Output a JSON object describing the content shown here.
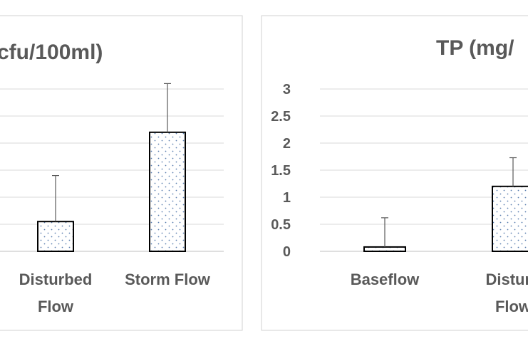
{
  "chart_data": [
    {
      "type": "bar",
      "title": "cfu/100ml)",
      "categories": [
        "Disturbed Flow",
        "Storm Flow"
      ],
      "category_lines": [
        [
          "Disturbed",
          "Flow"
        ],
        [
          "Storm Flow"
        ]
      ],
      "values": [
        0.55,
        2.2
      ],
      "error_upper": [
        1.4,
        3.1
      ],
      "ylim": [
        0,
        3
      ],
      "yticks": [],
      "grid": true
    },
    {
      "type": "bar",
      "title": "TP (mg/",
      "categories": [
        "Baseflow",
        "Disturbed Flow"
      ],
      "category_lines": [
        [
          "Baseflow"
        ],
        [
          "Disturb",
          "Flow"
        ]
      ],
      "values": [
        0.08,
        1.2
      ],
      "error_upper": [
        0.62,
        1.73
      ],
      "ylim": [
        0,
        3
      ],
      "yticks": [
        "0",
        "0.5",
        "1",
        "1.5",
        "2",
        "2.5",
        "3"
      ],
      "grid": true
    }
  ]
}
